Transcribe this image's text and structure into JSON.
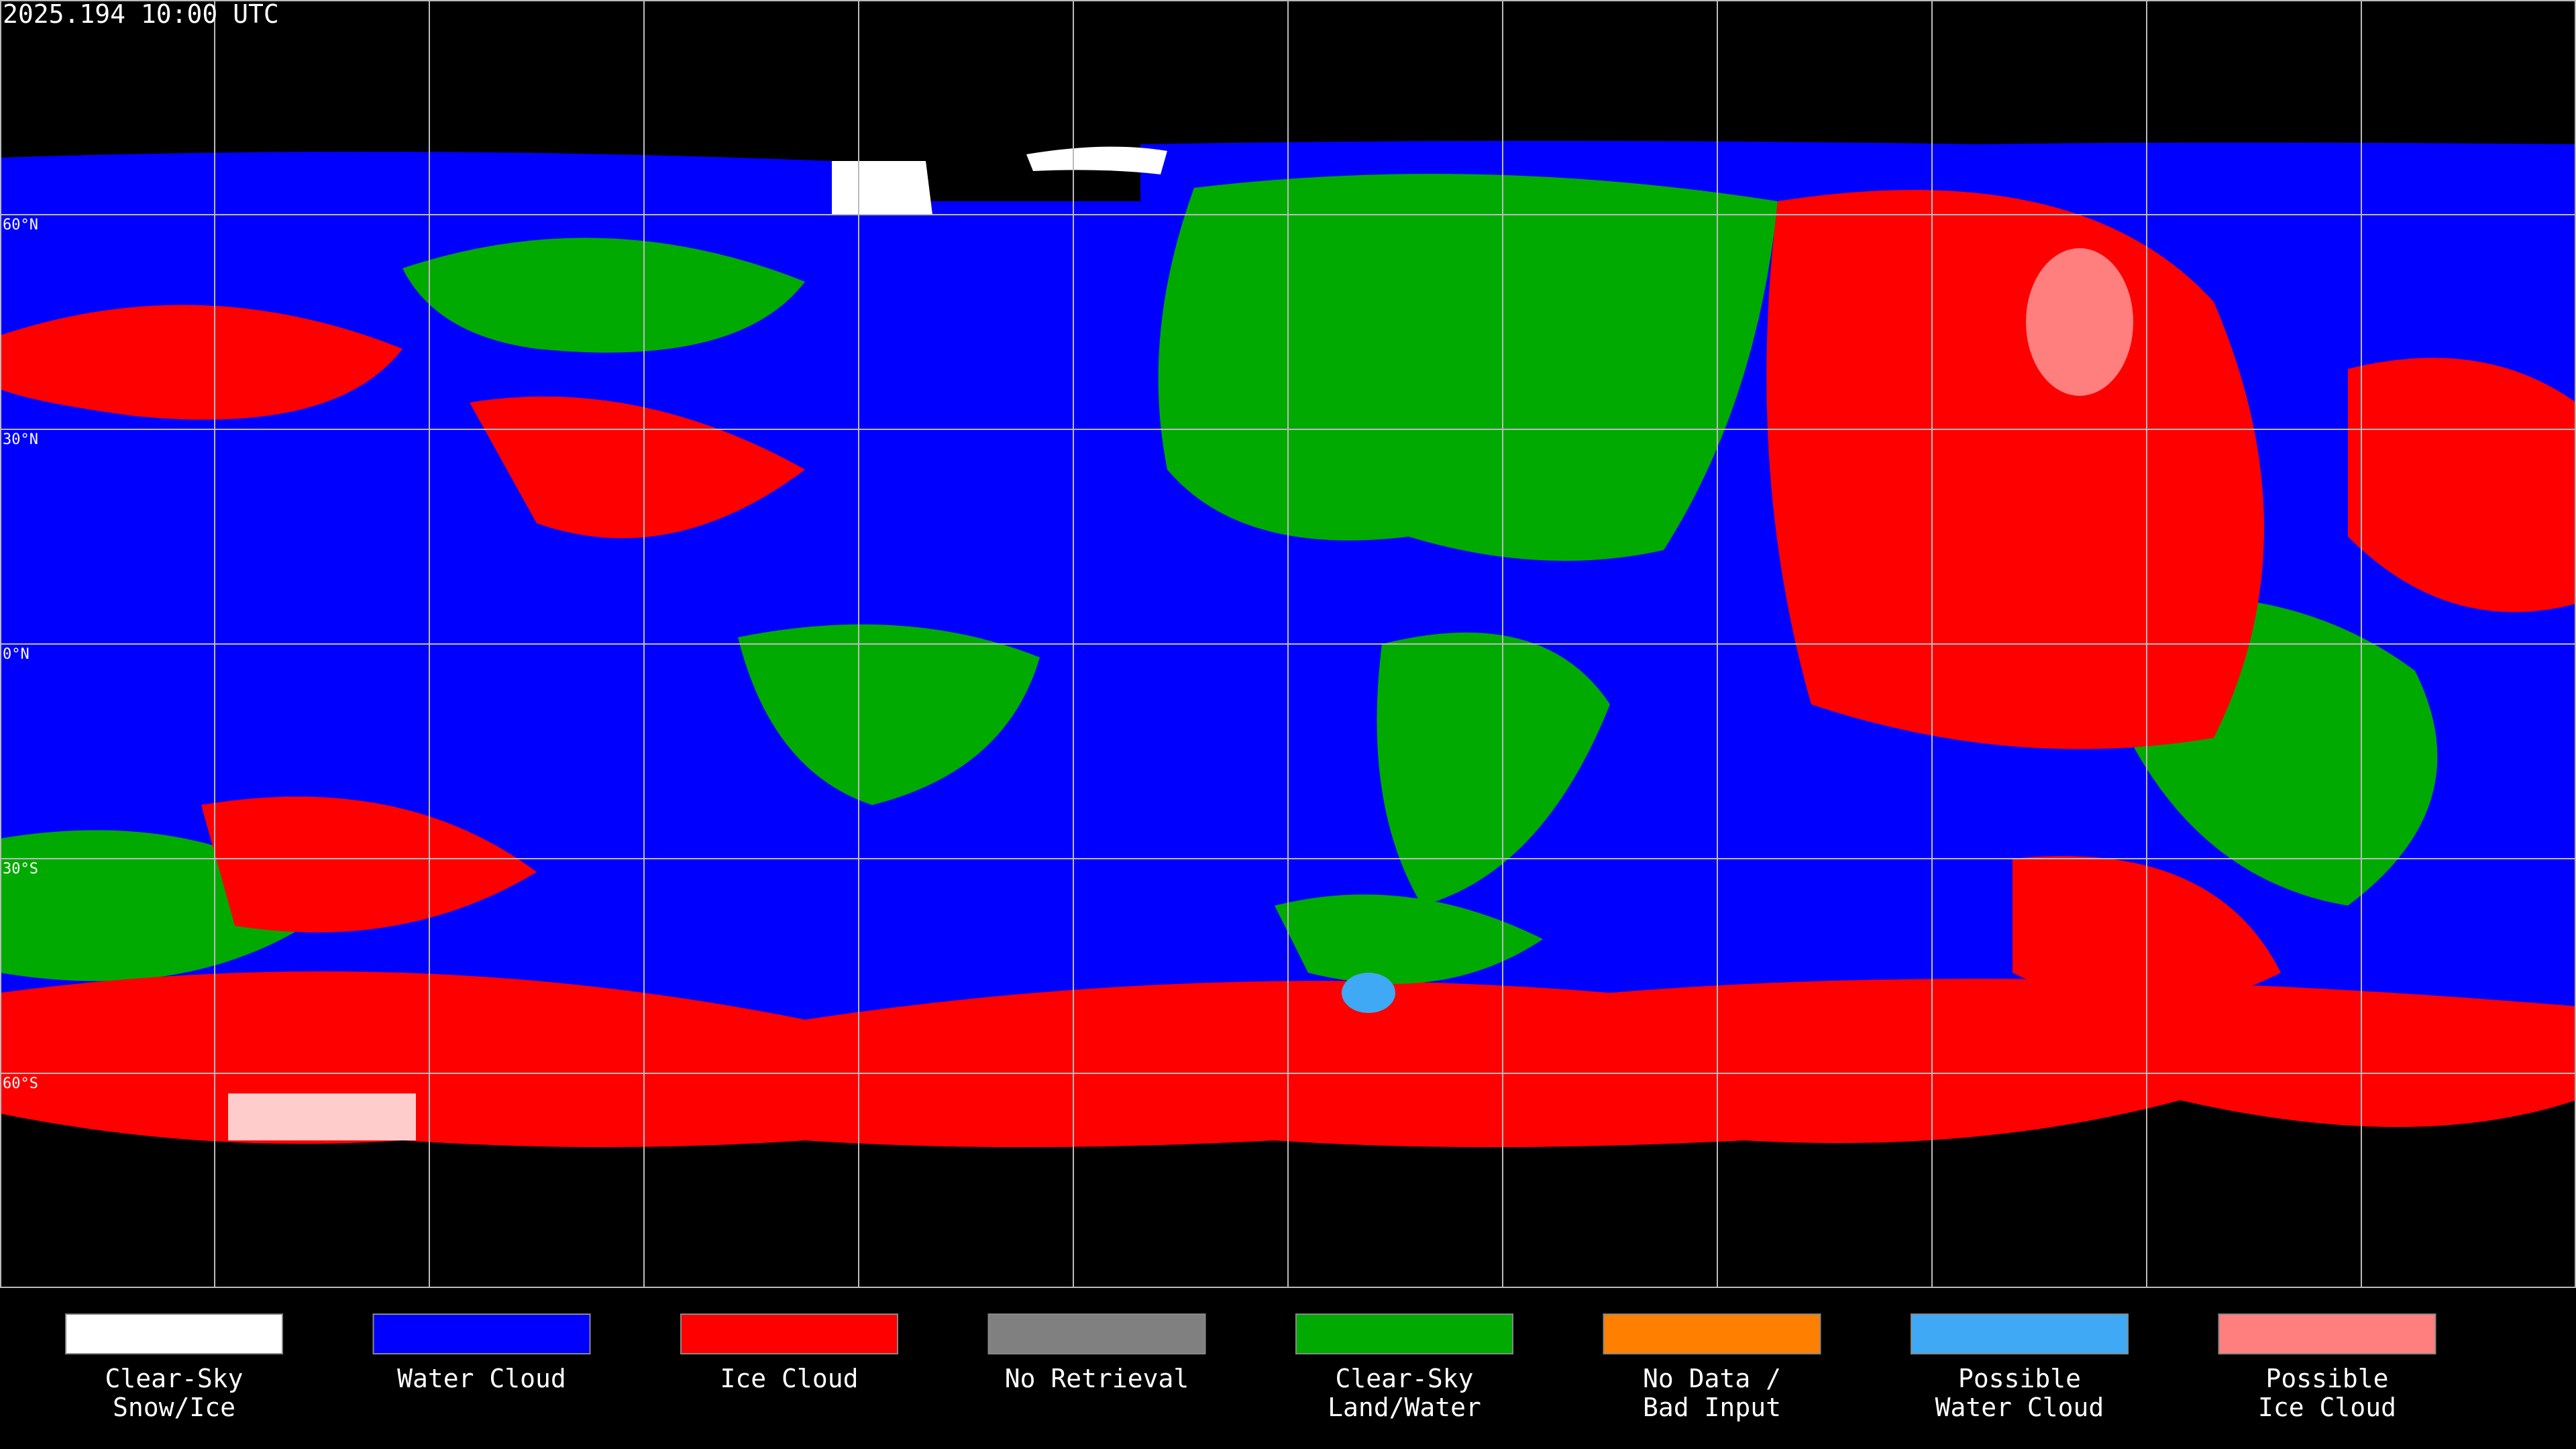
{
  "header": {
    "timestamp": "2025.194 10:00 UTC"
  },
  "latitude_labels": [
    "60°N",
    "30°N",
    "0°N",
    "30°S",
    "60°S"
  ],
  "legend": [
    {
      "color": "#ffffff",
      "label": [
        "Clear-Sky",
        "Snow/Ice"
      ]
    },
    {
      "color": "#0000ff",
      "label": [
        "Water Cloud"
      ]
    },
    {
      "color": "#ff0000",
      "label": [
        "Ice Cloud"
      ]
    },
    {
      "color": "#808080",
      "label": [
        "No Retrieval"
      ]
    },
    {
      "color": "#00aa00",
      "label": [
        "Clear-Sky",
        "Land/Water"
      ]
    },
    {
      "color": "#ff8000",
      "label": [
        "No Data /",
        "Bad Input"
      ]
    },
    {
      "color": "#3fa9f5",
      "label": [
        "Possible",
        "Water Cloud"
      ]
    },
    {
      "color": "#ff7f7f",
      "label": [
        "Possible",
        "Ice Cloud"
      ]
    }
  ]
}
